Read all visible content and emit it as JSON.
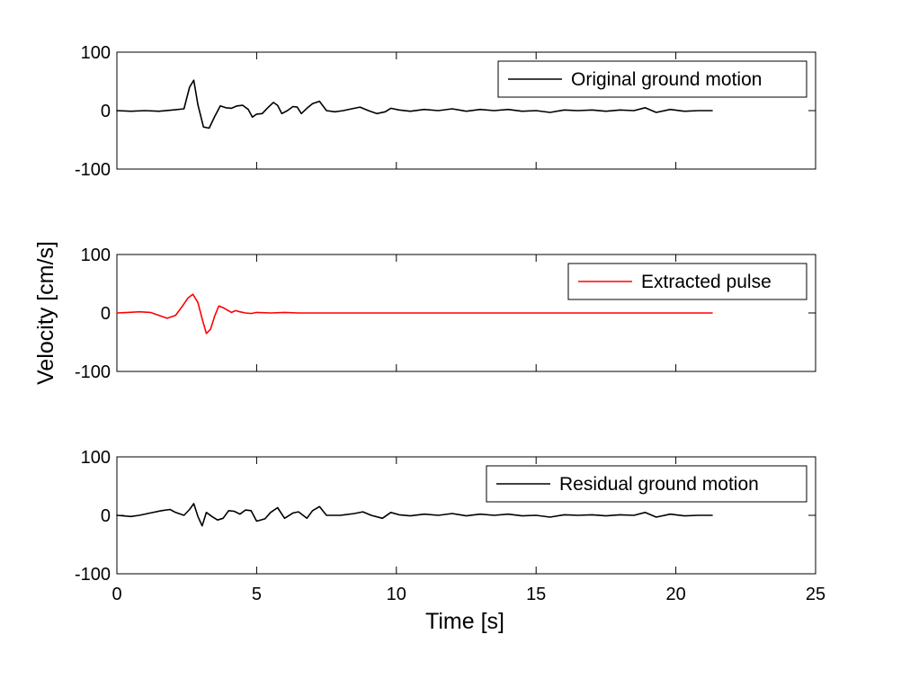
{
  "chart_data": {
    "type": "line",
    "xlabel": "Time [s]",
    "ylabel": "Velocity [cm/s]",
    "xlim": [
      0,
      25
    ],
    "x_ticks": [
      0,
      5,
      10,
      15,
      20,
      25
    ],
    "x_tick_labels": [
      "0",
      "5",
      "10",
      "15",
      "20",
      "25"
    ],
    "ylim": [
      -100,
      100
    ],
    "y_ticks": [
      -100,
      0,
      100
    ],
    "y_tick_labels": [
      "-100",
      "0",
      "100"
    ],
    "grid": false,
    "legend_position": "top-right",
    "panels": [
      {
        "series": [
          {
            "name": "Original ground motion",
            "color": "#000000",
            "x": [
              0,
              0.5,
              1.0,
              1.5,
              2.0,
              2.4,
              2.6,
              2.75,
              2.9,
              3.1,
              3.3,
              3.5,
              3.7,
              3.9,
              4.1,
              4.3,
              4.5,
              4.7,
              4.85,
              5.0,
              5.2,
              5.4,
              5.6,
              5.75,
              5.9,
              6.1,
              6.3,
              6.45,
              6.6,
              6.8,
              7.0,
              7.25,
              7.5,
              7.8,
              8.1,
              8.4,
              8.7,
              9.0,
              9.3,
              9.6,
              9.8,
              10.1,
              10.5,
              11.0,
              11.5,
              12.0,
              12.5,
              13.0,
              13.5,
              14.0,
              14.5,
              15.0,
              15.5,
              16.0,
              16.5,
              17.0,
              17.5,
              18.0,
              18.5,
              18.9,
              19.3,
              19.8,
              20.3,
              20.8,
              21.3
            ],
            "values": [
              0,
              -1,
              0,
              -1,
              1,
              3,
              40,
              52,
              10,
              -28,
              -30,
              -10,
              8,
              5,
              4,
              8,
              9,
              2,
              -11,
              -6,
              -5,
              5,
              14,
              9,
              -5,
              0,
              7,
              6,
              -5,
              4,
              12,
              16,
              0,
              -2,
              0,
              3,
              6,
              0,
              -5,
              -2,
              4,
              1,
              -1,
              2,
              0,
              3,
              -1,
              2,
              0,
              2,
              -1,
              0,
              -3,
              1,
              0,
              1,
              -1,
              1,
              0,
              5,
              -3,
              2,
              -1,
              0,
              0
            ]
          }
        ]
      },
      {
        "series": [
          {
            "name": "Extracted pulse",
            "color": "#ff0000",
            "x": [
              0,
              0.4,
              0.8,
              1.2,
              1.5,
              1.8,
              2.1,
              2.35,
              2.55,
              2.72,
              2.9,
              3.05,
              3.2,
              3.35,
              3.5,
              3.65,
              3.8,
              3.95,
              4.1,
              4.25,
              4.4,
              4.6,
              4.8,
              5.0,
              5.5,
              6.0,
              6.5,
              7.0,
              10.0,
              15.0,
              21.3
            ],
            "values": [
              0,
              1,
              2,
              1,
              -4,
              -9,
              -4,
              12,
              26,
              32,
              18,
              -10,
              -35,
              -28,
              -5,
              12,
              9,
              5,
              1,
              4,
              2,
              0,
              -1,
              1,
              0,
              1,
              0,
              0,
              0,
              0,
              0
            ]
          }
        ]
      },
      {
        "series": [
          {
            "name": "Residual ground motion",
            "color": "#000000",
            "x": [
              0,
              0.5,
              0.8,
              1.2,
              1.6,
              1.9,
              2.1,
              2.4,
              2.6,
              2.75,
              2.9,
              3.05,
              3.2,
              3.4,
              3.6,
              3.8,
              4.0,
              4.2,
              4.4,
              4.6,
              4.8,
              5.0,
              5.3,
              5.5,
              5.75,
              6.0,
              6.3,
              6.5,
              6.8,
              7.0,
              7.25,
              7.5,
              8.0,
              8.5,
              8.8,
              9.1,
              9.5,
              9.8,
              10.1,
              10.5,
              11.0,
              11.5,
              12.0,
              12.5,
              13.0,
              13.5,
              14.0,
              14.5,
              15.0,
              15.5,
              16.0,
              16.5,
              17.0,
              17.5,
              18.0,
              18.5,
              18.9,
              19.3,
              19.8,
              20.3,
              20.8,
              21.3
            ],
            "values": [
              0,
              -2,
              0,
              4,
              8,
              10,
              5,
              0,
              10,
              20,
              -2,
              -18,
              5,
              -2,
              -8,
              -5,
              8,
              7,
              2,
              9,
              8,
              -10,
              -6,
              5,
              13,
              -5,
              4,
              6,
              -5,
              8,
              15,
              0,
              0,
              3,
              6,
              0,
              -5,
              5,
              1,
              -1,
              2,
              0,
              3,
              -1,
              2,
              0,
              2,
              -1,
              0,
              -3,
              1,
              0,
              1,
              -1,
              1,
              0,
              5,
              -3,
              2,
              -1,
              0,
              0
            ]
          }
        ]
      }
    ]
  }
}
